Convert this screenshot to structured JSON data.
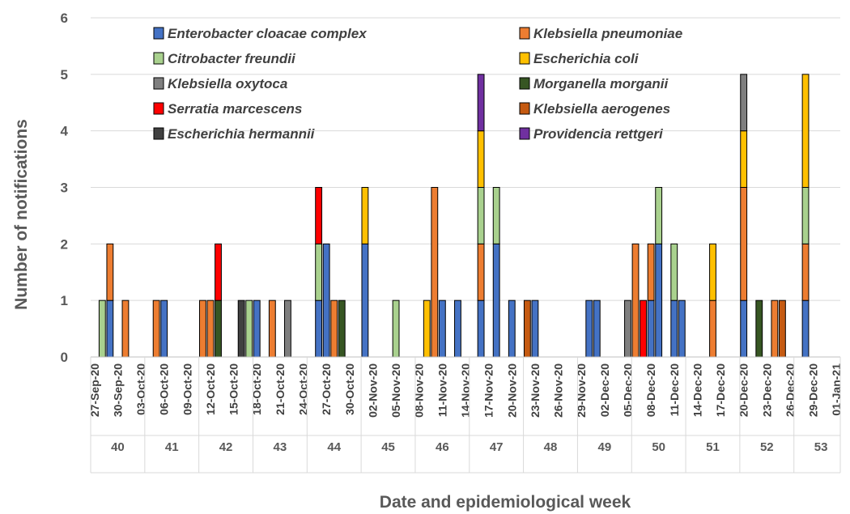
{
  "chart_data": {
    "type": "bar",
    "stacked": true,
    "title": "",
    "xlabel": "Date and epidemiological week",
    "ylabel": "Number of notifications",
    "ylim": [
      0,
      6
    ],
    "yticks": [
      0,
      1,
      2,
      3,
      4,
      5,
      6
    ],
    "grid": true,
    "legend_placement": "top",
    "date_labels": [
      "27-Sep-20",
      "30-Sep-20",
      "03-Oct-20",
      "06-Oct-20",
      "09-Oct-20",
      "12-Oct-20",
      "15-Oct-20",
      "18-Oct-20",
      "21-Oct-20",
      "24-Oct-20",
      "27-Oct-20",
      "30-Oct-20",
      "02-Nov-20",
      "05-Nov-20",
      "08-Nov-20",
      "11-Nov-20",
      "14-Nov-20",
      "17-Nov-20",
      "20-Nov-20",
      "23-Nov-20",
      "26-Nov-20",
      "29-Nov-20",
      "02-Dec-20",
      "05-Dec-20",
      "08-Dec-20",
      "11-Dec-20",
      "14-Dec-20",
      "17-Dec-20",
      "20-Dec-20",
      "23-Dec-20",
      "26-Dec-20",
      "29-Dec-20",
      "01-Jan-21"
    ],
    "weeks": [
      "40",
      "41",
      "42",
      "43",
      "44",
      "45",
      "46",
      "47",
      "48",
      "49",
      "50",
      "51",
      "52",
      "53"
    ],
    "series": [
      {
        "name": "Enterobacter cloacae complex",
        "color": "#4472C4"
      },
      {
        "name": "Klebsiella pneumoniae",
        "color": "#ED7D31"
      },
      {
        "name": "Citrobacter freundii",
        "color": "#A9D18E"
      },
      {
        "name": "Escherichia coli",
        "color": "#FFC000"
      },
      {
        "name": "Klebsiella oxytoca",
        "color": "#7F7F7F"
      },
      {
        "name": "Morganella morganii",
        "color": "#375623"
      },
      {
        "name": "Serratia marcescens",
        "color": "#FF0000"
      },
      {
        "name": "Klebsiella aerogenes",
        "color": "#C55A11"
      },
      {
        "name": "Escherichia hermannii",
        "color": "#404040"
      },
      {
        "name": "Providencia rettgeri",
        "color": "#7030A0"
      }
    ],
    "bars": [
      {
        "date": "28-Sep-20",
        "stack": [
          [
            2,
            1
          ]
        ]
      },
      {
        "date": "29-Sep-20",
        "stack": [
          [
            0,
            1
          ],
          [
            1,
            1
          ]
        ]
      },
      {
        "date": "01-Oct-20",
        "stack": [
          [
            1,
            1
          ]
        ]
      },
      {
        "date": "05-Oct-20",
        "stack": [
          [
            1,
            1
          ]
        ]
      },
      {
        "date": "06-Oct-20",
        "stack": [
          [
            0,
            1
          ]
        ]
      },
      {
        "date": "11-Oct-20",
        "stack": [
          [
            1,
            1
          ]
        ]
      },
      {
        "date": "12-Oct-20",
        "stack": [
          [
            1,
            1
          ]
        ]
      },
      {
        "date": "13-Oct-20",
        "stack": [
          [
            5,
            1
          ],
          [
            6,
            1
          ]
        ]
      },
      {
        "date": "16-Oct-20",
        "stack": [
          [
            8,
            1
          ]
        ]
      },
      {
        "date": "17-Oct-20",
        "stack": [
          [
            2,
            1
          ]
        ]
      },
      {
        "date": "18-Oct-20",
        "stack": [
          [
            0,
            1
          ]
        ]
      },
      {
        "date": "20-Oct-20",
        "stack": [
          [
            1,
            1
          ]
        ]
      },
      {
        "date": "22-Oct-20",
        "stack": [
          [
            4,
            1
          ]
        ]
      },
      {
        "date": "26-Oct-20",
        "stack": [
          [
            0,
            1
          ],
          [
            2,
            1
          ],
          [
            6,
            1
          ]
        ]
      },
      {
        "date": "27-Oct-20",
        "stack": [
          [
            0,
            2
          ]
        ]
      },
      {
        "date": "28-Oct-20",
        "stack": [
          [
            1,
            1
          ]
        ]
      },
      {
        "date": "29-Oct-20",
        "stack": [
          [
            5,
            1
          ]
        ]
      },
      {
        "date": "01-Nov-20",
        "stack": [
          [
            0,
            2
          ],
          [
            3,
            1
          ]
        ]
      },
      {
        "date": "05-Nov-20",
        "stack": [
          [
            2,
            1
          ]
        ]
      },
      {
        "date": "09-Nov-20",
        "stack": [
          [
            3,
            1
          ]
        ]
      },
      {
        "date": "10-Nov-20",
        "stack": [
          [
            1,
            3
          ]
        ]
      },
      {
        "date": "11-Nov-20",
        "stack": [
          [
            0,
            1
          ]
        ]
      },
      {
        "date": "13-Nov-20",
        "stack": [
          [
            0,
            1
          ]
        ]
      },
      {
        "date": "16-Nov-20",
        "stack": [
          [
            0,
            1
          ],
          [
            1,
            1
          ],
          [
            2,
            1
          ],
          [
            3,
            1
          ],
          [
            9,
            1
          ]
        ]
      },
      {
        "date": "18-Nov-20",
        "stack": [
          [
            0,
            2
          ],
          [
            2,
            1
          ]
        ]
      },
      {
        "date": "20-Nov-20",
        "stack": [
          [
            0,
            1
          ]
        ]
      },
      {
        "date": "22-Nov-20",
        "stack": [
          [
            7,
            1
          ]
        ]
      },
      {
        "date": "23-Nov-20",
        "stack": [
          [
            0,
            1
          ]
        ]
      },
      {
        "date": "30-Nov-20",
        "stack": [
          [
            0,
            1
          ]
        ]
      },
      {
        "date": "01-Dec-20",
        "stack": [
          [
            0,
            1
          ]
        ]
      },
      {
        "date": "05-Dec-20",
        "stack": [
          [
            4,
            1
          ]
        ]
      },
      {
        "date": "06-Dec-20",
        "stack": [
          [
            1,
            2
          ]
        ]
      },
      {
        "date": "07-Dec-20",
        "stack": [
          [
            6,
            1
          ]
        ]
      },
      {
        "date": "08-Dec-20",
        "stack": [
          [
            0,
            1
          ],
          [
            1,
            1
          ]
        ]
      },
      {
        "date": "09-Dec-20",
        "stack": [
          [
            0,
            2
          ],
          [
            2,
            1
          ]
        ]
      },
      {
        "date": "11-Dec-20",
        "stack": [
          [
            0,
            1
          ],
          [
            2,
            1
          ]
        ]
      },
      {
        "date": "12-Dec-20",
        "stack": [
          [
            0,
            1
          ]
        ]
      },
      {
        "date": "16-Dec-20",
        "stack": [
          [
            1,
            1
          ],
          [
            3,
            1
          ]
        ]
      },
      {
        "date": "20-Dec-20",
        "stack": [
          [
            0,
            1
          ],
          [
            1,
            2
          ],
          [
            3,
            1
          ],
          [
            4,
            1
          ]
        ]
      },
      {
        "date": "22-Dec-20",
        "stack": [
          [
            5,
            1
          ]
        ]
      },
      {
        "date": "24-Dec-20",
        "stack": [
          [
            1,
            1
          ]
        ]
      },
      {
        "date": "25-Dec-20",
        "stack": [
          [
            7,
            1
          ]
        ]
      },
      {
        "date": "28-Dec-20",
        "stack": [
          [
            0,
            1
          ],
          [
            1,
            1
          ],
          [
            2,
            1
          ],
          [
            3,
            2
          ]
        ]
      }
    ]
  }
}
